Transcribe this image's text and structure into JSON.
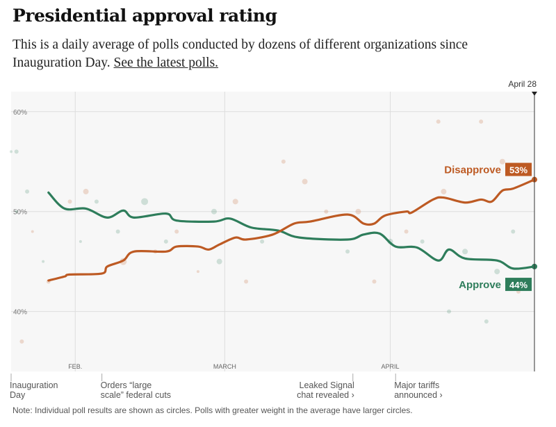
{
  "title": "Presidential approval rating",
  "subtitle": "This is a daily average of polls conducted by dozens of different organizations since Inauguration Day.",
  "subtitle_link": "See the latest polls.",
  "note": "Note: Individual poll results are shown as circles. Polls with greater weight in the average have larger circles.",
  "chart_data": {
    "type": "line",
    "x_start": "Jan 20",
    "x_end": "Apr 28",
    "ylim": [
      34,
      62
    ],
    "y_ticks": [
      {
        "value": 60,
        "label": "60%"
      },
      {
        "value": 50,
        "label": "50%"
      },
      {
        "value": 40,
        "label": "40%"
      }
    ],
    "x_ticks": [
      {
        "date": "Feb 1",
        "label": "FEB."
      },
      {
        "date": "Mar 1",
        "label": "MARCH"
      },
      {
        "date": "Apr 1",
        "label": "APRIL"
      }
    ],
    "grid": true,
    "end_marker": "April 28",
    "colors": {
      "approve": "#2e7d5b",
      "disapprove": "#bd5a23",
      "background": "#f7f7f7"
    },
    "series": [
      {
        "name": "Approve",
        "value_label": "44%",
        "key": "approve",
        "points": [
          [
            "Jan 27",
            51.9
          ],
          [
            "Jan 30",
            50.3
          ],
          [
            "Feb 3",
            50.3
          ],
          [
            "Feb 7",
            49.4
          ],
          [
            "Feb 10",
            50.1
          ],
          [
            "Feb 12",
            49.4
          ],
          [
            "Feb 18",
            49.8
          ],
          [
            "Feb 20",
            49.1
          ],
          [
            "Feb 27",
            49.0
          ],
          [
            "Mar 2",
            49.3
          ],
          [
            "Mar 6",
            48.4
          ],
          [
            "Mar 11",
            48.1
          ],
          [
            "Mar 15",
            47.4
          ],
          [
            "Mar 24",
            47.2
          ],
          [
            "Mar 27",
            47.7
          ],
          [
            "Mar 30",
            47.8
          ],
          [
            "Apr 2",
            46.5
          ],
          [
            "Apr 6",
            46.4
          ],
          [
            "Apr 10",
            45.1
          ],
          [
            "Apr 12",
            46.2
          ],
          [
            "Apr 15",
            45.3
          ],
          [
            "Apr 21",
            45.1
          ],
          [
            "Apr 24",
            44.3
          ],
          [
            "Apr 28",
            44.5
          ]
        ]
      },
      {
        "name": "Disapprove",
        "value_label": "53%",
        "key": "disapprove",
        "points": [
          [
            "Jan 27",
            43.1
          ],
          [
            "Jan 30",
            43.5
          ],
          [
            "Jan 31",
            43.7
          ],
          [
            "Feb 6",
            43.8
          ],
          [
            "Feb 7",
            44.5
          ],
          [
            "Feb 10",
            45.1
          ],
          [
            "Feb 12",
            46.0
          ],
          [
            "Feb 18",
            46.0
          ],
          [
            "Feb 20",
            46.5
          ],
          [
            "Feb 24",
            46.5
          ],
          [
            "Feb 26",
            46.2
          ],
          [
            "Feb 28",
            46.7
          ],
          [
            "Mar 3",
            47.4
          ],
          [
            "Mar 5",
            47.2
          ],
          [
            "Mar 10",
            47.7
          ],
          [
            "Mar 14",
            48.8
          ],
          [
            "Mar 17",
            49.0
          ],
          [
            "Mar 24",
            49.7
          ],
          [
            "Mar 27",
            48.8
          ],
          [
            "Mar 29",
            48.8
          ],
          [
            "Mar 31",
            49.6
          ],
          [
            "Apr 4",
            50.0
          ],
          [
            "Apr 5",
            49.9
          ],
          [
            "Apr 9",
            51.2
          ],
          [
            "Apr 11",
            51.4
          ],
          [
            "Apr 15",
            50.9
          ],
          [
            "Apr 18",
            51.2
          ],
          [
            "Apr 20",
            51.0
          ],
          [
            "Apr 22",
            52.1
          ],
          [
            "Apr 24",
            52.3
          ],
          [
            "Apr 28",
            53.2
          ]
        ]
      }
    ],
    "polls": [
      [
        "Jan 20",
        56,
        "a",
        2
      ],
      [
        "Jan 21",
        56,
        "a",
        3
      ],
      [
        "Jan 21",
        50,
        "a",
        2
      ],
      [
        "Jan 22",
        37,
        "d",
        3
      ],
      [
        "Jan 23",
        52,
        "a",
        3
      ],
      [
        "Jan 24",
        48,
        "d",
        2
      ],
      [
        "Jan 26",
        45,
        "a",
        2
      ],
      [
        "Jan 27",
        43,
        "d",
        3
      ],
      [
        "Jan 31",
        51,
        "d",
        3
      ],
      [
        "Feb 2",
        47,
        "a",
        2
      ],
      [
        "Feb 3",
        52,
        "d",
        4
      ],
      [
        "Feb 5",
        51,
        "a",
        3
      ],
      [
        "Feb 9",
        48,
        "a",
        3
      ],
      [
        "Feb 10",
        45,
        "d",
        5
      ],
      [
        "Feb 14",
        51,
        "a",
        5
      ],
      [
        "Feb 16",
        46,
        "d",
        3
      ],
      [
        "Feb 18",
        47,
        "a",
        3
      ],
      [
        "Feb 20",
        48,
        "d",
        3
      ],
      [
        "Feb 24",
        44,
        "d",
        2
      ],
      [
        "Feb 27",
        50,
        "a",
        4
      ],
      [
        "Feb 28",
        45,
        "a",
        4
      ],
      [
        "Mar 3",
        51,
        "d",
        4
      ],
      [
        "Mar 5",
        43,
        "d",
        3
      ],
      [
        "Mar 8",
        47,
        "a",
        3
      ],
      [
        "Mar 12",
        55,
        "d",
        3
      ],
      [
        "Mar 16",
        53,
        "d",
        4
      ],
      [
        "Mar 20",
        50,
        "d",
        3
      ],
      [
        "Mar 24",
        46,
        "a",
        3
      ],
      [
        "Mar 26",
        50,
        "d",
        4
      ],
      [
        "Mar 29",
        43,
        "d",
        3
      ],
      [
        "Apr 1",
        47,
        "a",
        4
      ],
      [
        "Apr 4",
        48,
        "d",
        3
      ],
      [
        "Apr 7",
        47,
        "a",
        3
      ],
      [
        "Apr 10",
        59,
        "d",
        3
      ],
      [
        "Apr 11",
        52,
        "d",
        4
      ],
      [
        "Apr 12",
        40,
        "a",
        3
      ],
      [
        "Apr 15",
        46,
        "a",
        4
      ],
      [
        "Apr 18",
        59,
        "d",
        3
      ],
      [
        "Apr 19",
        39,
        "a",
        3
      ],
      [
        "Apr 21",
        44,
        "a",
        4
      ],
      [
        "Apr 22",
        55,
        "d",
        4
      ],
      [
        "Apr 24",
        48,
        "a",
        3
      ],
      [
        "Apr 25",
        42,
        "d",
        3
      ]
    ],
    "annotations": [
      {
        "date": "Jan 20",
        "lines": [
          "Inauguration",
          "Day"
        ],
        "align": "start"
      },
      {
        "date": "Feb 6",
        "lines": [
          "Orders “large",
          "scale” federal cuts"
        ],
        "align": "start"
      },
      {
        "date": "Mar 25",
        "lines": [
          "Leaked Signal",
          "chat revealed ›"
        ],
        "align": "end"
      },
      {
        "date": "Apr 2",
        "lines": [
          "Major tariffs",
          "announced ›"
        ],
        "align": "start"
      }
    ]
  }
}
